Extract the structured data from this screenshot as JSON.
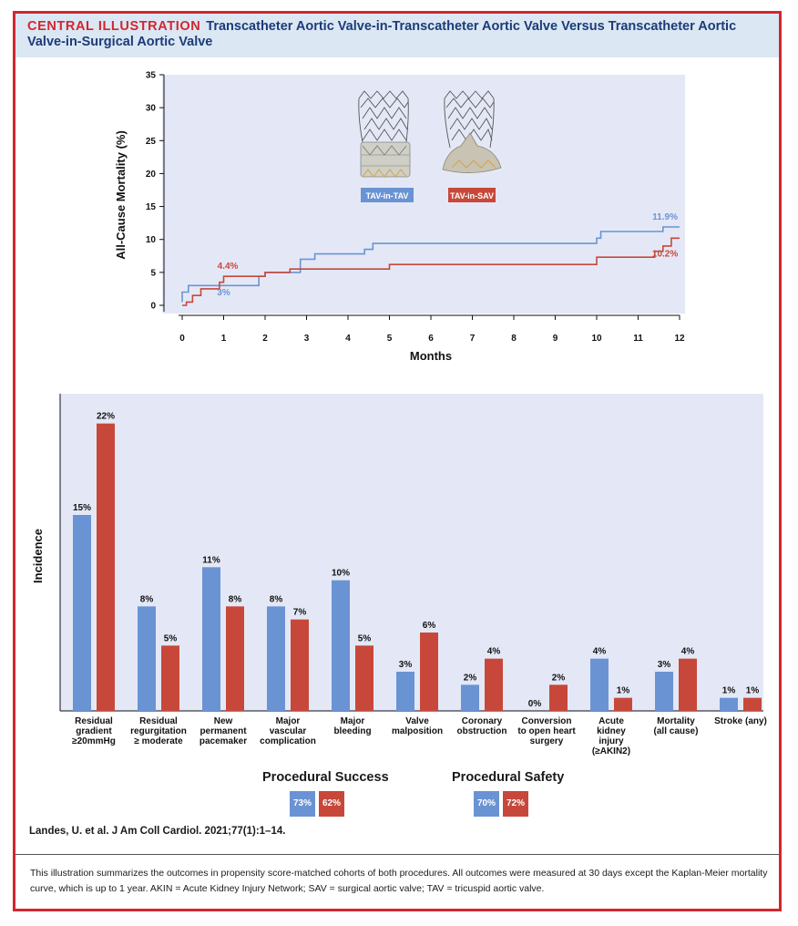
{
  "header": {
    "label": "CENTRAL ILLUSTRATION",
    "title": "Transcatheter Aortic Valve-in-Transcatheter Aortic Valve Versus Transcatheter Aortic Valve-in-Surgical Aortic Valve"
  },
  "colors": {
    "blue": "#6a93d4",
    "red": "#c7483a",
    "accent": "#d2262f",
    "plot_bg": "#e4e8f6"
  },
  "chart_data": [
    {
      "type": "line",
      "ylabel": "All-Cause Mortality (%)",
      "xlabel": "Months",
      "xlim": [
        0,
        12
      ],
      "ylim": [
        0,
        35
      ],
      "x_ticks": [
        "0",
        "1",
        "2",
        "3",
        "4",
        "5",
        "6",
        "7",
        "8",
        "9",
        "10",
        "11",
        "12"
      ],
      "y_ticks": [
        "0",
        "5",
        "10",
        "15",
        "20",
        "25",
        "30",
        "35"
      ],
      "device_labels": [
        "TAV-in-TAV",
        "TAV-in-SAV"
      ],
      "series": [
        {
          "name": "TAV-in-TAV",
          "color": "#6a93d4",
          "points": [
            [
              0,
              0.5
            ],
            [
              0,
              2.0
            ],
            [
              0.15,
              2.0
            ],
            [
              0.15,
              3.0
            ],
            [
              0.5,
              3.0
            ],
            [
              0.5,
              3.0
            ],
            [
              1.0,
              3.0
            ],
            [
              1.0,
              3.0
            ],
            [
              1.85,
              3.0
            ],
            [
              1.85,
              4.4
            ],
            [
              2.0,
              4.4
            ],
            [
              2.0,
              5.0
            ],
            [
              2.85,
              5.0
            ],
            [
              2.85,
              7.0
            ],
            [
              3.2,
              7.0
            ],
            [
              3.2,
              7.8
            ],
            [
              4.4,
              7.8
            ],
            [
              4.4,
              8.5
            ],
            [
              4.6,
              8.5
            ],
            [
              4.6,
              9.4
            ],
            [
              10.0,
              9.4
            ],
            [
              10.0,
              10.2
            ],
            [
              10.1,
              10.2
            ],
            [
              10.1,
              11.2
            ],
            [
              11.6,
              11.2
            ],
            [
              11.6,
              11.9
            ],
            [
              12,
              11.9
            ]
          ],
          "labels": [
            {
              "text": "3%",
              "x": 1.0,
              "y": 1.5
            },
            {
              "text": "11.9%",
              "x": 11.65,
              "y": 13.0
            }
          ]
        },
        {
          "name": "TAV-in-SAV",
          "color": "#c7483a",
          "points": [
            [
              0,
              0.0
            ],
            [
              0.1,
              0.0
            ],
            [
              0.1,
              0.5
            ],
            [
              0.25,
              0.5
            ],
            [
              0.25,
              1.5
            ],
            [
              0.45,
              1.5
            ],
            [
              0.45,
              2.5
            ],
            [
              0.9,
              2.5
            ],
            [
              0.9,
              3.5
            ],
            [
              1.0,
              3.5
            ],
            [
              1.0,
              4.4
            ],
            [
              2.0,
              4.4
            ],
            [
              2.0,
              5.0
            ],
            [
              2.6,
              5.0
            ],
            [
              2.6,
              5.5
            ],
            [
              5.0,
              5.5
            ],
            [
              5.0,
              6.2
            ],
            [
              10.0,
              6.2
            ],
            [
              10.0,
              7.3
            ],
            [
              11.4,
              7.3
            ],
            [
              11.4,
              8.2
            ],
            [
              11.6,
              8.2
            ],
            [
              11.6,
              9.0
            ],
            [
              11.8,
              9.0
            ],
            [
              11.8,
              10.2
            ],
            [
              12,
              10.2
            ]
          ],
          "labels": [
            {
              "text": "4.4%",
              "x": 1.1,
              "y": 5.5
            },
            {
              "text": "10.2%",
              "x": 11.65,
              "y": 7.4
            }
          ]
        }
      ]
    },
    {
      "type": "bar",
      "ylabel": "Incidence",
      "categories": [
        [
          "Residual",
          "gradient",
          "≥20mmHg"
        ],
        [
          "Residual",
          "regurgitation",
          "≥ moderate"
        ],
        [
          "New",
          "permanent",
          "pacemaker"
        ],
        [
          "Major",
          "vascular",
          "complication"
        ],
        [
          "Major",
          "bleeding"
        ],
        [
          "Valve",
          "malposition"
        ],
        [
          "Coronary",
          "obstruction"
        ],
        [
          "Conversion",
          "to open heart",
          "surgery"
        ],
        [
          "Acute",
          "kidney",
          "injury",
          "(≥AKIN2)"
        ],
        [
          "Mortality",
          "(all cause)"
        ],
        [
          "Stroke (any)"
        ]
      ],
      "ylim": [
        0,
        24
      ],
      "series": [
        {
          "name": "TAV-in-TAV",
          "color": "#6a93d4",
          "values": [
            15,
            8,
            11,
            8,
            10,
            3,
            2,
            0,
            4,
            3,
            1
          ]
        },
        {
          "name": "TAV-in-SAV",
          "color": "#c7483a",
          "values": [
            22,
            5,
            8,
            7,
            5,
            6,
            4,
            2,
            1,
            4,
            1
          ]
        }
      ],
      "value_labels": {
        "TAV-in-TAV": [
          "15%",
          "8%",
          "11%",
          "8%",
          "10%",
          "3%",
          "2%",
          "0%",
          "4%",
          "3%",
          "1%"
        ],
        "TAV-in-SAV": [
          "22%",
          "5%",
          "8%",
          "7%",
          "5%",
          "6%",
          "4%",
          "2%",
          "1%",
          "4%",
          "1%"
        ]
      }
    }
  ],
  "legend": {
    "success": {
      "title": "Procedural Success",
      "tav_in_tav": "73%",
      "tav_in_sav": "62%"
    },
    "safety": {
      "title": "Procedural Safety",
      "tav_in_tav": "70%",
      "tav_in_sav": "72%"
    }
  },
  "citation": "Landes, U. et al. J Am Coll Cardiol. 2021;77(1):1–14.",
  "footer": "This illustration summarizes the outcomes in propensity score-matched cohorts of both procedures. All outcomes were measured at 30 days except the Kaplan-Meier mortality curve, which is up to 1 year. AKIN = Acute Kidney Injury Network; SAV = surgical aortic valve; TAV = tricuspid aortic valve."
}
